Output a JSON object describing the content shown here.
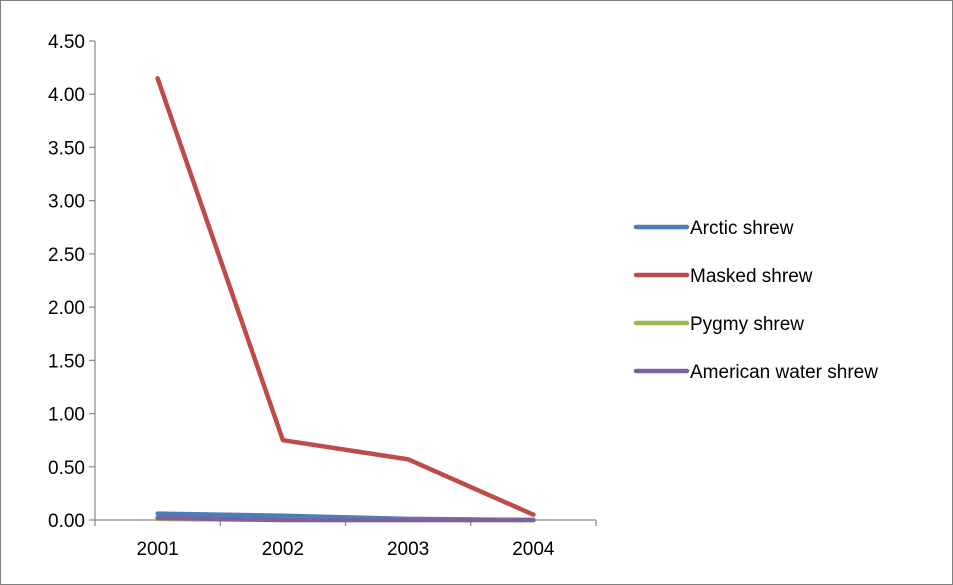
{
  "chart_data": {
    "type": "line",
    "title": "",
    "xlabel": "",
    "ylabel": "",
    "categories": [
      "2001",
      "2002",
      "2003",
      "2004"
    ],
    "ylim": [
      0,
      4.5
    ],
    "yticks": [
      0,
      0.5,
      1,
      1.5,
      2,
      2.5,
      3,
      3.5,
      4,
      4.5
    ],
    "ytick_labels": [
      "0.00",
      "0.50",
      "1.00",
      "1.50",
      "2.00",
      "2.50",
      "3.00",
      "3.50",
      "4.00",
      "4.50"
    ],
    "grid": false,
    "legend_position": "right",
    "series": [
      {
        "name": "Arctic shrew",
        "color": "#4a7ebb",
        "values": [
          0.06,
          0.04,
          0.01,
          0.0
        ]
      },
      {
        "name": "Masked shrew",
        "color": "#be4b48",
        "values": [
          4.15,
          0.75,
          0.57,
          0.05
        ]
      },
      {
        "name": "Pygmy shrew",
        "color": "#98b954",
        "values": [
          0.01,
          0.0,
          0.0,
          0.0
        ]
      },
      {
        "name": "American water shrew",
        "color": "#7d60a0",
        "values": [
          0.02,
          0.0,
          0.0,
          0.0
        ]
      }
    ]
  }
}
